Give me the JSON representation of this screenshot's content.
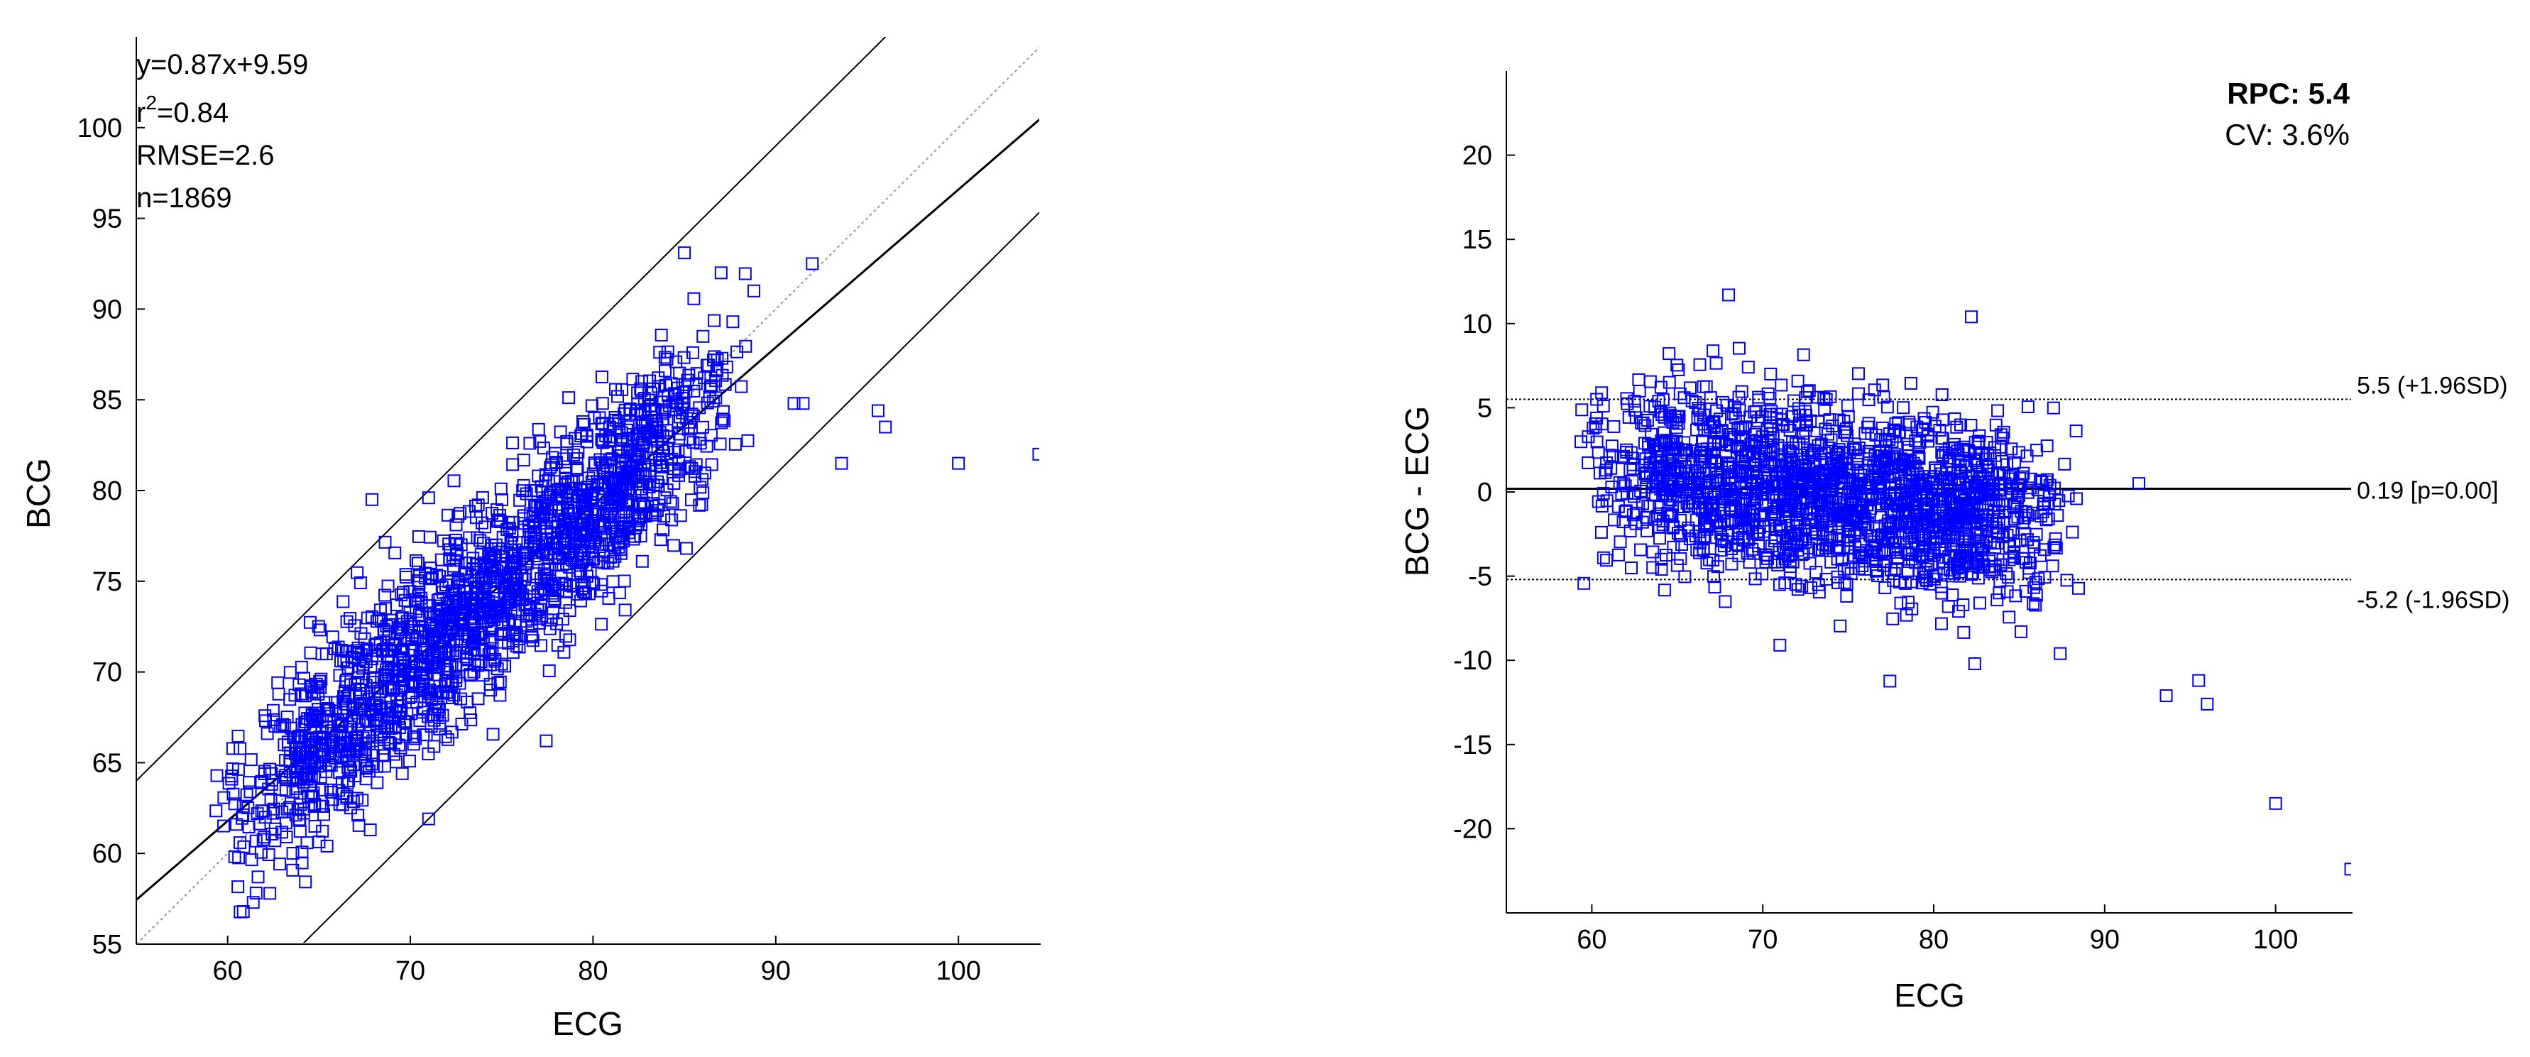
{
  "chart_data": [
    {
      "type": "scatter",
      "title": "",
      "xlabel": "ECG",
      "ylabel": "BCG",
      "xlim": [
        55,
        104.5
      ],
      "ylim": [
        55,
        105
      ],
      "xticks": [
        60,
        70,
        80,
        90,
        100
      ],
      "yticks": [
        55,
        60,
        65,
        70,
        75,
        80,
        85,
        90,
        95,
        100
      ],
      "grid": false,
      "marker": "square",
      "marker_color": "#0000ff",
      "stats": {
        "equation": "y=0.87x+9.59",
        "r2_prefix": "r",
        "r2_sup": "2",
        "r2_value": "=0.84",
        "rmse": "RMSE=2.6",
        "n": "n=1869"
      },
      "lines": [
        {
          "name": "identity",
          "slope": 1,
          "intercept": 0,
          "style": "dotted",
          "color": "#999999"
        },
        {
          "name": "fit",
          "slope": 0.87,
          "intercept": 9.59,
          "style": "solid",
          "color": "#000000"
        },
        {
          "name": "upper",
          "slope": 1.0,
          "intercept": 9.0,
          "style": "solid",
          "color": "#000000"
        },
        {
          "name": "lower",
          "slope": 1.0,
          "intercept": -9.1,
          "style": "solid",
          "color": "#000000"
        }
      ],
      "outliers": [
        [
          93.6,
          81.5
        ],
        [
          95.6,
          84.4
        ],
        [
          96.0,
          83.5
        ],
        [
          100.0,
          81.5
        ],
        [
          104.4,
          82.0
        ],
        [
          91.0,
          84.8
        ],
        [
          91.5,
          84.8
        ],
        [
          92.0,
          92.5
        ],
        [
          88.8,
          91.0
        ],
        [
          85.0,
          93.1
        ],
        [
          67.9,
          79.5
        ],
        [
          71.0,
          79.6
        ],
        [
          61.4,
          57.3
        ],
        [
          71.0,
          61.9
        ]
      ],
      "generator": {
        "count": 1869,
        "x_mean": 76,
        "x_sd": 7,
        "x_min": 59.3,
        "x_max": 88.5,
        "slope": 0.87,
        "intercept": 9.59,
        "noise_sd": 2.6
      }
    },
    {
      "type": "scatter",
      "title": "",
      "xlabel": "ECG",
      "ylabel": "BCG - ECG",
      "xlim": [
        55,
        104.5
      ],
      "ylim": [
        -25,
        25
      ],
      "xticks": [
        60,
        70,
        80,
        90,
        100
      ],
      "yticks": [
        -20,
        -15,
        -10,
        -5,
        0,
        5,
        10,
        15,
        20
      ],
      "grid": false,
      "marker": "square",
      "marker_color": "#0000ff",
      "rpc": "RPC: 5.4",
      "cv": "CV: 3.6%",
      "reference_lines": [
        {
          "value": 5.5,
          "label": "5.5 (+1.96SD)",
          "style": "dotted"
        },
        {
          "value": 0.19,
          "label": "0.19 [p=0.00]",
          "style": "solid"
        },
        {
          "value": -5.2,
          "label": "-5.2 (-1.96SD)",
          "style": "dotted"
        }
      ],
      "outliers": [
        [
          68.0,
          11.7
        ],
        [
          82.2,
          10.4
        ],
        [
          82.4,
          -10.2
        ],
        [
          87.4,
          -9.6
        ],
        [
          92.0,
          0.5
        ],
        [
          93.6,
          -12.1
        ],
        [
          95.5,
          -11.2
        ],
        [
          96.0,
          -12.6
        ],
        [
          100.0,
          -18.5
        ],
        [
          104.4,
          -22.4
        ],
        [
          71.0,
          -9.1
        ]
      ],
      "generator": {
        "count": 1869,
        "x_mean": 76,
        "x_sd": 7,
        "x_min": 59.3,
        "x_max": 88.5,
        "noise_sd": 2.6
      }
    }
  ]
}
